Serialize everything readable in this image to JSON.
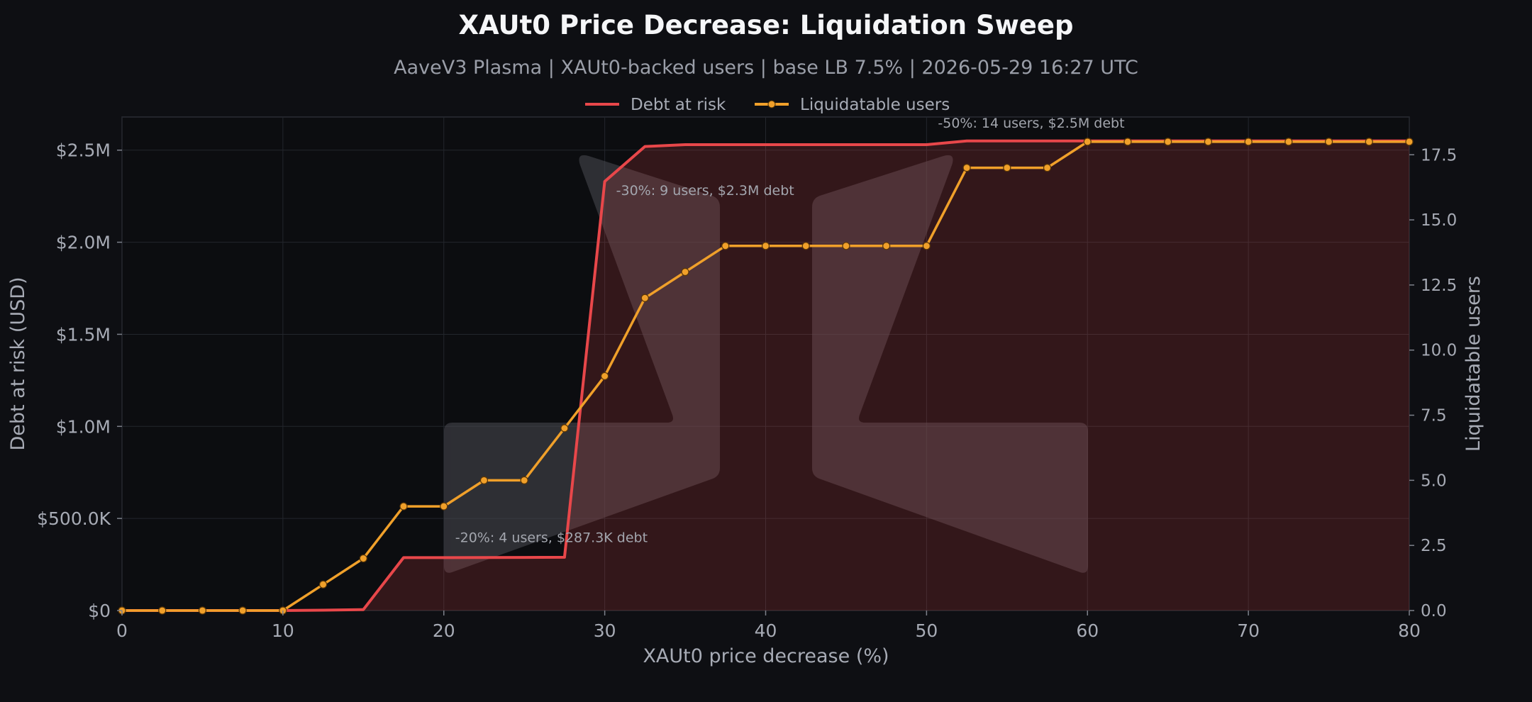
{
  "chart_data": {
    "type": "line",
    "title": "XAUt0 Price Decrease: Liquidation Sweep",
    "subtitle": "AaveV3 Plasma | XAUt0-backed users | base LB 7.5% | 2026-05-29 16:27 UTC",
    "xlabel": "XAUt0 price decrease (%)",
    "ylabel": "Debt at risk (USD)",
    "y2label": "Liquidatable users",
    "xlim": [
      0,
      80
    ],
    "ylim": [
      0,
      2680000
    ],
    "y2lim": [
      0,
      18.95
    ],
    "x_ticks": [
      0,
      10,
      20,
      30,
      40,
      50,
      60,
      70,
      80
    ],
    "y_ticks": [
      {
        "value": 0,
        "label": "$0"
      },
      {
        "value": 500000,
        "label": "$500.0K"
      },
      {
        "value": 1000000,
        "label": "$1.0M"
      },
      {
        "value": 1500000,
        "label": "$1.5M"
      },
      {
        "value": 2000000,
        "label": "$2.0M"
      },
      {
        "value": 2500000,
        "label": "$2.5M"
      }
    ],
    "y2_ticks": [
      {
        "value": 0,
        "label": "0.0"
      },
      {
        "value": 2.5,
        "label": "2.5"
      },
      {
        "value": 5,
        "label": "5.0"
      },
      {
        "value": 7.5,
        "label": "7.5"
      },
      {
        "value": 10,
        "label": "10.0"
      },
      {
        "value": 12.5,
        "label": "12.5"
      },
      {
        "value": 15,
        "label": "15.0"
      },
      {
        "value": 17.5,
        "label": "17.5"
      }
    ],
    "grid": true,
    "legend_position": "top-center",
    "x": [
      0,
      2.5,
      5,
      7.5,
      10,
      12.5,
      15,
      17.5,
      20,
      22.5,
      25,
      27.5,
      30,
      32.5,
      35,
      37.5,
      40,
      42.5,
      45,
      47.5,
      50,
      52.5,
      55,
      57.5,
      60,
      62.5,
      65,
      67.5,
      70,
      72.5,
      75,
      77.5,
      80
    ],
    "series": [
      {
        "name": "Debt at risk",
        "axis": "left",
        "color": "#e8474a",
        "fill": true,
        "values": [
          0,
          0,
          0,
          0,
          0,
          2000,
          5000,
          287300,
          287300,
          287900,
          288500,
          289000,
          2330000,
          2520000,
          2530000,
          2530000,
          2530000,
          2530000,
          2530000,
          2530000,
          2530000,
          2550000,
          2550000,
          2550000,
          2550000,
          2550000,
          2550000,
          2550000,
          2550000,
          2550000,
          2550000,
          2550000,
          2550000
        ]
      },
      {
        "name": "Liquidatable users",
        "axis": "right",
        "color": "#f0a02a",
        "values": [
          0,
          0,
          0,
          0,
          0,
          1,
          2,
          4,
          4,
          5,
          5,
          7,
          9,
          12,
          13,
          14,
          14,
          14,
          14,
          14,
          14,
          17,
          17,
          17,
          18,
          18,
          18,
          18,
          18,
          18,
          18,
          18,
          18
        ]
      }
    ],
    "annotations": [
      {
        "text": "-20%: 4 users, $287.3K debt",
        "x": 20,
        "y": 287300
      },
      {
        "text": "-30%: 9 users, $2.3M debt",
        "x": 30,
        "y": 2330000
      },
      {
        "text": "-50%: 14 users, $2.5M debt",
        "x": 50,
        "y": 2530000
      }
    ]
  },
  "colors": {
    "background": "#0e0f13",
    "plot_background": "#0c0d10",
    "debt_line": "#e8474a",
    "users_line": "#f0a02a"
  }
}
